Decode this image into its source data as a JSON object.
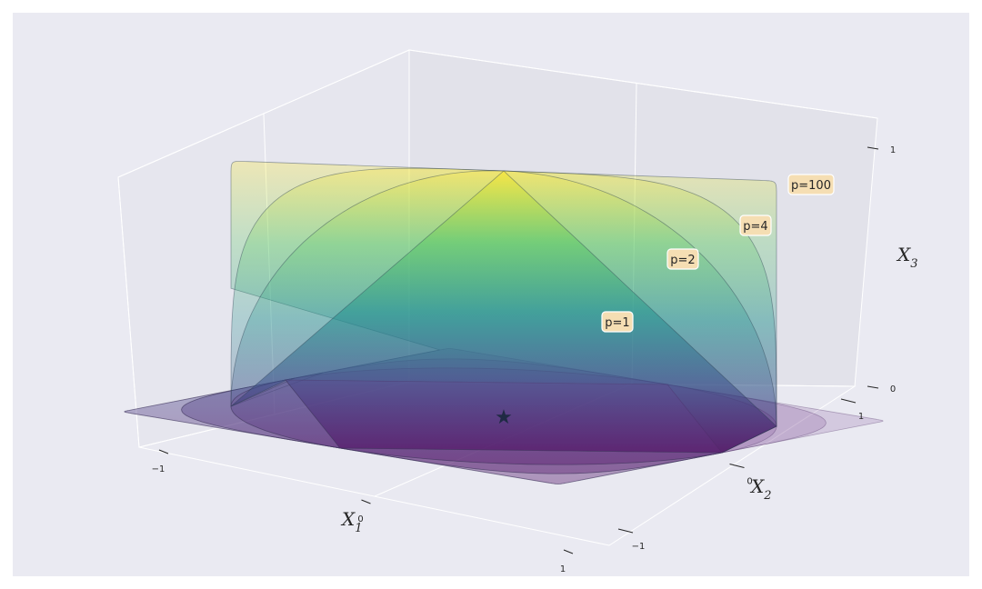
{
  "chart_data": {
    "type": "surface3d",
    "title": "",
    "axes": {
      "x": {
        "label_main": "X",
        "label_sub": "1",
        "ticks": [
          "−1",
          "0",
          "1"
        ],
        "range": [
          -1,
          1
        ]
      },
      "y": {
        "label_main": "X",
        "label_sub": "2",
        "ticks": [
          "−1",
          "0",
          "1"
        ],
        "range": [
          -1,
          1
        ]
      },
      "z": {
        "label_main": "X",
        "label_sub": "3",
        "ticks": [
          "0",
          "1"
        ],
        "range": [
          0,
          1
        ]
      }
    },
    "surfaces": [
      {
        "name": "p=1",
        "p": 1
      },
      {
        "name": "p=2",
        "p": 2
      },
      {
        "name": "p=4",
        "p": 4
      },
      {
        "name": "p=100",
        "p": 100
      }
    ],
    "center_marker": {
      "symbol": "★",
      "x": 0,
      "y": 0,
      "z": 0
    },
    "colormap": "viridis",
    "colors": {
      "figure_bg": "#eaeaf2",
      "pane_bg": "#e4e4ec",
      "grid": "#ffffff",
      "tag_bg": "#f5deb3",
      "viridis_low": "#440154",
      "viridis_mid": "#21918c",
      "viridis_high": "#fde725"
    },
    "grid": true
  }
}
